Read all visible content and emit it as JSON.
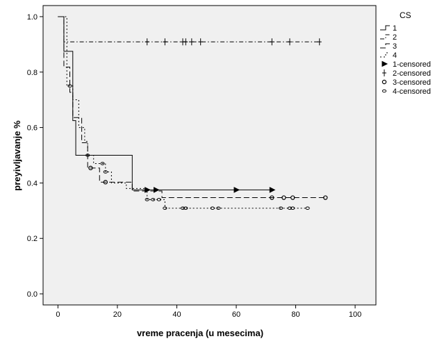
{
  "chart_data": {
    "type": "line",
    "subtype": "kaplan-meier-step",
    "xlabel": "vreme pracenja (u mesecima)",
    "ylabel": "preyivljavanje %",
    "xlim": [
      -5,
      107
    ],
    "ylim": [
      -0.04,
      1.04
    ],
    "xticks": [
      0,
      20,
      40,
      60,
      80,
      100
    ],
    "yticks": [
      0.0,
      0.2,
      0.4,
      0.6,
      0.8,
      1.0
    ],
    "ytick_labels": [
      "0.0",
      "0.2",
      "0.4",
      "0.6",
      "0.8",
      "1.0"
    ],
    "grid": false,
    "legend": {
      "title": "CS",
      "placement": "right",
      "entries": [
        "1",
        "2",
        "3",
        "4",
        "1-censored",
        "2-censored",
        "3-censored",
        "4-censored"
      ]
    },
    "series": [
      {
        "name": "1",
        "line_style": "solid",
        "censor_marker": "triangle",
        "steps": [
          [
            0,
            1.0
          ],
          [
            2,
            0.875
          ],
          [
            5,
            0.625
          ],
          [
            6,
            0.5
          ],
          [
            25,
            0.375
          ]
        ],
        "end_x": 72,
        "censored": [
          [
            30,
            0.375
          ],
          [
            33,
            0.375
          ],
          [
            60,
            0.375
          ],
          [
            72,
            0.375
          ]
        ]
      },
      {
        "name": "2",
        "line_style": "dashdot",
        "censor_marker": "plus",
        "steps": [
          [
            0,
            1.0
          ],
          [
            2,
            0.909
          ]
        ],
        "end_x": 88,
        "censored": [
          [
            30,
            0.909
          ],
          [
            36,
            0.909
          ],
          [
            42,
            0.909
          ],
          [
            43,
            0.909
          ],
          [
            45,
            0.909
          ],
          [
            48,
            0.909
          ],
          [
            72,
            0.909
          ],
          [
            78,
            0.909
          ],
          [
            88,
            0.909
          ]
        ]
      },
      {
        "name": "3",
        "line_style": "dashed",
        "censor_marker": "circle",
        "steps": [
          [
            0,
            1.0
          ],
          [
            2,
            0.818
          ],
          [
            4,
            0.727
          ],
          [
            5,
            0.636
          ],
          [
            8,
            0.545
          ],
          [
            10,
            0.454
          ],
          [
            14,
            0.403
          ],
          [
            24,
            0.403
          ],
          [
            25,
            0.371
          ],
          [
            35,
            0.347
          ]
        ],
        "end_x": 90,
        "censored": [
          [
            11,
            0.454
          ],
          [
            16,
            0.403
          ],
          [
            72,
            0.347
          ],
          [
            76,
            0.347
          ],
          [
            79,
            0.347
          ],
          [
            90,
            0.347
          ]
        ]
      },
      {
        "name": "4",
        "line_style": "dotted",
        "censor_marker": "ellipse",
        "steps": [
          [
            0,
            1.0
          ],
          [
            3,
            0.75
          ],
          [
            5,
            0.7
          ],
          [
            7,
            0.6
          ],
          [
            9,
            0.55
          ],
          [
            10,
            0.5
          ],
          [
            12,
            0.47
          ],
          [
            16,
            0.44
          ],
          [
            18,
            0.4
          ],
          [
            23,
            0.38
          ],
          [
            30,
            0.34
          ],
          [
            36,
            0.309
          ]
        ],
        "end_x": 84,
        "censored": [
          [
            4,
            0.75
          ],
          [
            10,
            0.5
          ],
          [
            15,
            0.47
          ],
          [
            16,
            0.44
          ],
          [
            30,
            0.34
          ],
          [
            32,
            0.34
          ],
          [
            34,
            0.34
          ],
          [
            36,
            0.309
          ],
          [
            42,
            0.309
          ],
          [
            43,
            0.309
          ],
          [
            52,
            0.309
          ],
          [
            54,
            0.309
          ],
          [
            75,
            0.309
          ],
          [
            78,
            0.309
          ],
          [
            79,
            0.309
          ],
          [
            84,
            0.309
          ]
        ]
      }
    ]
  }
}
